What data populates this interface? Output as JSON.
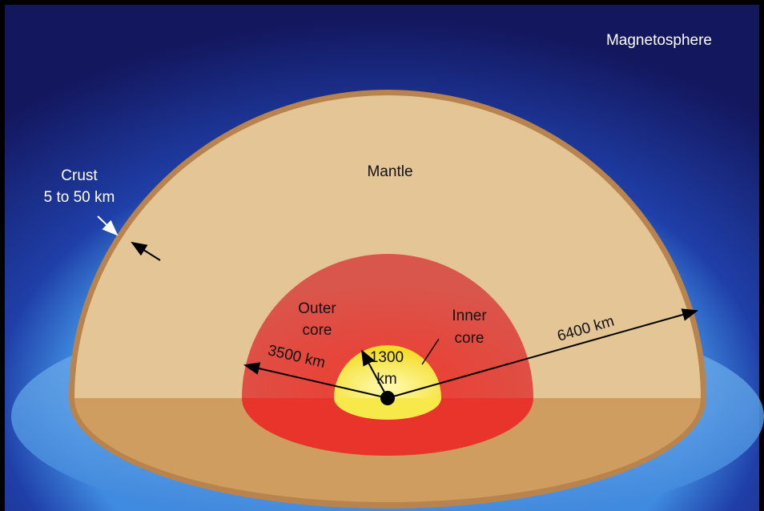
{
  "labels": {
    "magnetosphere": "Magnetosphere",
    "mantle": "Mantle",
    "crust": [
      "Crust",
      "5 to 50 km"
    ],
    "outer_core": [
      "Outer",
      "core"
    ],
    "inner_core": [
      "Inner",
      "core"
    ],
    "radius_earth": "6400 km",
    "radius_outer_core": "3500 km",
    "radius_inner_core": [
      "1300",
      "km"
    ]
  }
}
